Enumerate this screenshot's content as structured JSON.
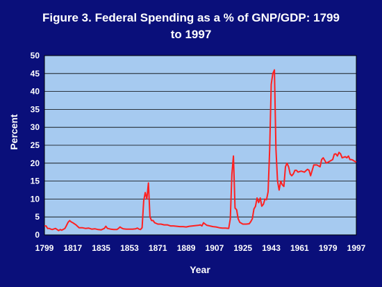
{
  "colors": {
    "background": "#0a0f7a",
    "plot_area": "#a6caf0",
    "line": "#ff2020",
    "grid": "#000000",
    "text": "#ffffff"
  },
  "chart_data": {
    "type": "line",
    "title_line1": "Figure 3.  Federal Spending as a % of GNP/GDP: 1799",
    "title_line2": "to 1997",
    "xlabel": "Year",
    "ylabel": "Percent",
    "xlim": [
      1799,
      1997
    ],
    "ylim": [
      0,
      50
    ],
    "grid": true,
    "x_ticks": [
      "1799",
      "1817",
      "1835",
      "1853",
      "1871",
      "1889",
      "1907",
      "1925",
      "1943",
      "1961",
      "1979",
      "1997"
    ],
    "y_ticks": [
      "0",
      "5",
      "10",
      "15",
      "20",
      "25",
      "30",
      "35",
      "40",
      "45",
      "50"
    ],
    "series": [
      {
        "x": [
          1799,
          1800,
          1801,
          1802,
          1803,
          1804,
          1806,
          1808,
          1809,
          1810,
          1812,
          1813,
          1814,
          1815,
          1816,
          1817,
          1819,
          1821,
          1823,
          1825,
          1827,
          1829,
          1831,
          1833,
          1835,
          1837,
          1838,
          1839,
          1841,
          1843,
          1845,
          1846,
          1847,
          1848,
          1849,
          1851,
          1853,
          1855,
          1857,
          1858,
          1859,
          1860,
          1861,
          1862,
          1863,
          1864,
          1865,
          1866,
          1867,
          1868,
          1869,
          1871,
          1873,
          1875,
          1877,
          1879,
          1881,
          1883,
          1885,
          1887,
          1889,
          1891,
          1893,
          1895,
          1897,
          1898,
          1899,
          1900,
          1902,
          1904,
          1906,
          1908,
          1910,
          1912,
          1914,
          1916,
          1917,
          1918,
          1919,
          1920,
          1921,
          1922,
          1923,
          1925,
          1927,
          1929,
          1930,
          1931,
          1932,
          1933,
          1934,
          1935,
          1936,
          1937,
          1938,
          1939,
          1940,
          1941,
          1942,
          1943,
          1944,
          1945,
          1946,
          1947,
          1948,
          1949,
          1950,
          1951,
          1952,
          1953,
          1954,
          1955,
          1956,
          1957,
          1958,
          1959,
          1960,
          1962,
          1964,
          1966,
          1967,
          1968,
          1970,
          1972,
          1974,
          1975,
          1976,
          1978,
          1980,
          1982,
          1983,
          1984,
          1985,
          1986,
          1987,
          1988,
          1990,
          1991,
          1992,
          1993,
          1994,
          1995,
          1996,
          1997
        ],
        "y": [
          2.5,
          2.5,
          1.8,
          1.8,
          1.6,
          1.5,
          1.8,
          1.2,
          1.5,
          1.3,
          1.8,
          2.6,
          3.5,
          4.0,
          3.6,
          3.4,
          2.8,
          2.0,
          2.0,
          1.8,
          1.9,
          1.6,
          1.7,
          1.5,
          1.4,
          1.8,
          2.4,
          1.8,
          1.6,
          1.5,
          1.5,
          1.8,
          2.2,
          1.9,
          1.7,
          1.6,
          1.6,
          1.6,
          1.7,
          1.9,
          1.6,
          1.5,
          2.0,
          9.5,
          11.8,
          10.0,
          14.5,
          5.0,
          4.0,
          4.0,
          3.4,
          3.0,
          3.0,
          2.8,
          2.8,
          2.5,
          2.5,
          2.4,
          2.3,
          2.3,
          2.2,
          2.4,
          2.5,
          2.6,
          2.7,
          2.8,
          2.5,
          3.4,
          2.7,
          2.5,
          2.3,
          2.2,
          2.0,
          1.9,
          1.9,
          1.8,
          4.5,
          17.0,
          22.0,
          7.5,
          7.0,
          4.5,
          3.5,
          3.0,
          3.0,
          3.1,
          3.7,
          4.5,
          7.2,
          8.0,
          10.3,
          9.0,
          10.3,
          8.0,
          8.5,
          10.0,
          9.8,
          12.0,
          24.0,
          42.0,
          45.0,
          46.0,
          24.0,
          15.0,
          12.5,
          15.0,
          14.0,
          13.5,
          19.0,
          20.0,
          19.0,
          17.0,
          16.5,
          17.0,
          18.0,
          18.0,
          17.5,
          17.8,
          17.5,
          18.3,
          18.0,
          16.5,
          19.5,
          19.5,
          19.0,
          21.0,
          21.5,
          20.0,
          20.5,
          21.0,
          22.5,
          22.6,
          22.0,
          23.0,
          22.6,
          21.5,
          21.8,
          21.5,
          22.0,
          21.0,
          21.0,
          20.8,
          20.5,
          20.3
        ]
      }
    ]
  }
}
